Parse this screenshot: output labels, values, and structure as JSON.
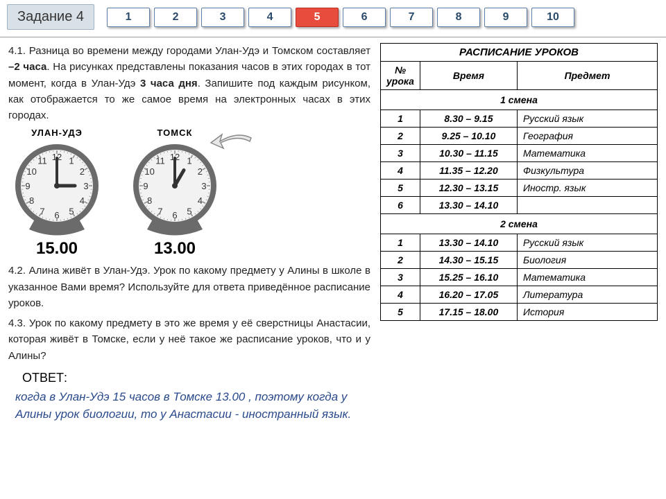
{
  "header": {
    "title": "Задание 4",
    "tabs": [
      "1",
      "2",
      "3",
      "4",
      "5",
      "6",
      "7",
      "8",
      "9",
      "10"
    ],
    "active_tab_index": 4,
    "tab_bg": "#ffffff",
    "tab_active_bg": "#e84c3d",
    "tab_border": "#5a7fa6"
  },
  "task41_prefix": "4.1. Разница во времени между городами Улан-Удэ и Томском составляет ",
  "task41_bold": "–2 часа",
  "task41_mid": ". На рисунках представлены показания часов в этих городах в тот момент, когда в Улан-Удэ ",
  "task41_bold2": "3 часа дня",
  "task41_suffix": ". Запишите под каждым рисунком, как отображается то же самое время на электронных часах в этих городах.",
  "clocks": [
    {
      "city": "УЛАН-УДЭ",
      "hour": 3,
      "minute": 0,
      "display": "15.00"
    },
    {
      "city": "ТОМСК",
      "hour": 1,
      "minute": 0,
      "display": "13.00"
    }
  ],
  "task42": "4.2. Алина живёт в Улан-Удэ. Урок по какому предмету у Алины в школе в указанное Вами время? Используйте для ответа приведённое расписание уроков.",
  "task43": "4.3. Урок по какому предмету в это же время у её сверстницы Анастасии, которая живёт в Томске, если у неё такое же расписание уроков, что и у Алины?",
  "answer_label": "ОТВЕТ:",
  "answer_text": "когда в Улан-Удэ 15 часов в Томске 13.00 , поэтому когда у Алины урок биологии, то у Анастасии - иностранный язык.",
  "schedule": {
    "title": "РАСПИСАНИЕ УРОКОВ",
    "col_num": "№ урока",
    "col_time": "Время",
    "col_subj": "Предмет",
    "shift1_label": "1 смена",
    "shift2_label": "2 смена",
    "shift1": [
      {
        "n": "1",
        "t": "8.30 – 9.15",
        "s": "Русский язык"
      },
      {
        "n": "2",
        "t": "9.25 – 10.10",
        "s": "География"
      },
      {
        "n": "3",
        "t": "10.30 – 11.15",
        "s": "Математика"
      },
      {
        "n": "4",
        "t": "11.35 – 12.20",
        "s": "Физкультура"
      },
      {
        "n": "5",
        "t": "12.30 – 13.15",
        "s": "Иностр. язык"
      },
      {
        "n": "6",
        "t": "13.30 – 14.10",
        "s": ""
      }
    ],
    "shift2": [
      {
        "n": "1",
        "t": "13.30 – 14.10",
        "s": "Русский язык"
      },
      {
        "n": "2",
        "t": "14.30 – 15.15",
        "s": "Биология"
      },
      {
        "n": "3",
        "t": "15.25 – 16.10",
        "s": "Математика"
      },
      {
        "n": "4",
        "t": "16.20 – 17.05",
        "s": "Литература"
      },
      {
        "n": "5",
        "t": "17.15 – 18.00",
        "s": "История"
      }
    ]
  },
  "clock_style": {
    "outer_stroke": "#6b6b6b",
    "face_fill": "#f2f2f2",
    "number_color": "#333333",
    "hand_color": "#333333"
  }
}
